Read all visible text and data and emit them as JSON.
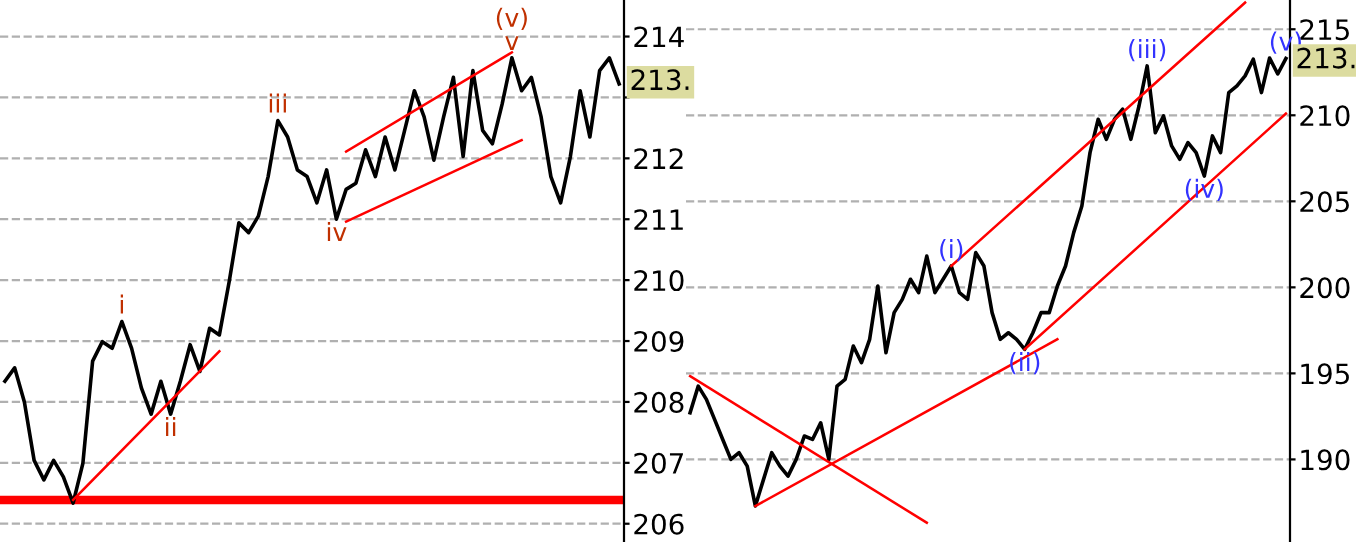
{
  "chart_data": [
    {
      "type": "line",
      "categories": [
        null,
        null,
        null,
        null,
        null,
        null,
        null,
        null,
        null,
        null,
        null,
        null,
        null,
        null,
        null,
        null,
        null,
        null,
        null,
        null,
        null,
        null,
        null,
        null,
        null,
        null,
        null,
        null,
        null,
        null,
        null,
        null,
        null,
        null,
        null,
        null,
        null,
        null,
        null,
        null,
        null,
        null,
        null,
        null,
        null,
        null,
        null,
        null,
        null,
        null,
        null,
        null,
        null,
        null,
        null,
        null,
        null,
        null,
        null,
        null,
        null,
        null,
        null,
        null
      ],
      "ylim": [
        205.7,
        214.6
      ],
      "yticks": [
        206,
        207,
        208,
        209,
        210,
        211,
        212,
        {
          "value": 213,
          "label": null
        },
        214
      ],
      "tick_labels": "y",
      "grid": "y",
      "marker": "none",
      "line_style": "solid",
      "series": [
        {
          "color": "#000000",
          "values": [
            208.34,
            208.56,
            208.0,
            207.04,
            206.72,
            207.04,
            206.77,
            206.34,
            206.99,
            208.67,
            208.99,
            208.88,
            209.32,
            208.88,
            208.23,
            207.8,
            208.34,
            207.8,
            208.34,
            208.94,
            208.5,
            209.21,
            209.1,
            209.97,
            210.94,
            210.78,
            211.05,
            211.7,
            212.62,
            212.35,
            211.81,
            211.7,
            211.27,
            211.81,
            211.0,
            211.49,
            211.59,
            212.14,
            211.7,
            212.35,
            211.81,
            212.46,
            213.11,
            212.68,
            211.97,
            212.68,
            213.33,
            212.03,
            213.44,
            212.46,
            212.24,
            212.89,
            213.65,
            213.11,
            213.33,
            212.68,
            211.7,
            211.27,
            212.03,
            213.11,
            212.35,
            213.44,
            213.65,
            213.22
          ],
          "value_labels": [
            null,
            null,
            null,
            null,
            null,
            null,
            null,
            null,
            null,
            null,
            null,
            null,
            "i",
            null,
            null,
            null,
            null,
            "ii",
            null,
            null,
            null,
            null,
            null,
            null,
            null,
            null,
            null,
            null,
            "iii",
            null,
            null,
            null,
            null,
            null,
            "iv",
            null,
            null,
            null,
            null,
            null,
            null,
            null,
            null,
            null,
            null,
            null,
            null,
            null,
            null,
            null,
            null,
            null,
            "(v)\nv",
            null,
            null,
            null,
            null,
            null,
            null,
            null,
            null,
            null,
            null,
            null
          ]
        },
        {
          "color": "#ff0000",
          "values": [
            null,
            null,
            null,
            null,
            null,
            null,
            null,
            206.39,
            null,
            null,
            null,
            null,
            null,
            null,
            null,
            null,
            null,
            null,
            null,
            null,
            null,
            null,
            208.83,
            null,
            null,
            null,
            null,
            null,
            null,
            null,
            null,
            null,
            null,
            null,
            null,
            null,
            null,
            null,
            null,
            null,
            null,
            null,
            null,
            null,
            null,
            null,
            null,
            null,
            null,
            null,
            null,
            null,
            null,
            null,
            null,
            null,
            null,
            null,
            null,
            null,
            null,
            null,
            null,
            null
          ]
        },
        {
          "color": "#ff0000",
          "values": [
            null,
            null,
            null,
            null,
            null,
            null,
            null,
            null,
            null,
            null,
            null,
            null,
            null,
            null,
            null,
            null,
            null,
            null,
            null,
            null,
            null,
            null,
            null,
            null,
            null,
            null,
            null,
            null,
            null,
            null,
            null,
            null,
            null,
            null,
            null,
            212.11,
            null,
            null,
            null,
            null,
            null,
            null,
            null,
            null,
            null,
            null,
            null,
            null,
            null,
            null,
            null,
            null,
            213.74,
            null,
            null,
            null,
            null,
            null,
            null,
            null,
            null,
            null,
            null,
            null
          ]
        },
        {
          "color": "#ff0000",
          "values": [
            null,
            null,
            null,
            null,
            null,
            null,
            null,
            null,
            null,
            null,
            null,
            null,
            null,
            null,
            null,
            null,
            null,
            null,
            null,
            null,
            null,
            null,
            null,
            null,
            null,
            null,
            null,
            null,
            null,
            null,
            null,
            null,
            null,
            null,
            null,
            210.96,
            null,
            null,
            null,
            null,
            null,
            null,
            null,
            null,
            null,
            null,
            null,
            null,
            null,
            null,
            null,
            null,
            null,
            212.3,
            null,
            null,
            null,
            null,
            null,
            null,
            null,
            null,
            null,
            null
          ]
        }
      ],
      "ref_lines": [
        {
          "axis": "y",
          "value": 206.39,
          "color": "#ff0000"
        }
      ],
      "annotations": [
        {
          "text": "213.",
          "y": 213.25
        }
      ]
    },
    {
      "type": "line",
      "categories": [
        null,
        null,
        null,
        null,
        null,
        null,
        null,
        null,
        null,
        null,
        null,
        null,
        null,
        null,
        null,
        null,
        null,
        null,
        null,
        null,
        null,
        null,
        null,
        null,
        null,
        null,
        null,
        null,
        null,
        null,
        null,
        null,
        null,
        null,
        null,
        null,
        null,
        null,
        null,
        null,
        null,
        null,
        null,
        null,
        null,
        null,
        null,
        null,
        null,
        null,
        null,
        null,
        null,
        null,
        null,
        null,
        null,
        null,
        null,
        null,
        null,
        null,
        null,
        null,
        null,
        null,
        null,
        null,
        null,
        null,
        null,
        null,
        null,
        null
      ],
      "ylim": [
        185.2,
        216.7
      ],
      "yticks": [
        190,
        195,
        200,
        205,
        210,
        215
      ],
      "tick_labels": "y",
      "grid": "y",
      "marker": "none",
      "line_style": "solid",
      "series": [
        {
          "color": "#000000",
          "values": [
            192.71,
            194.26,
            193.49,
            192.33,
            191.16,
            190.0,
            190.39,
            189.61,
            187.29,
            188.84,
            190.39,
            189.61,
            189.03,
            190.0,
            191.36,
            191.16,
            192.13,
            190.0,
            194.26,
            194.65,
            196.59,
            195.62,
            196.98,
            200.08,
            196.2,
            198.53,
            199.3,
            200.47,
            199.69,
            201.82,
            199.69,
            200.47,
            201.24,
            199.69,
            199.3,
            202.02,
            201.24,
            198.53,
            196.98,
            197.36,
            196.98,
            196.4,
            197.36,
            198.53,
            198.53,
            200.08,
            201.24,
            203.18,
            204.73,
            207.83,
            209.77,
            208.6,
            209.77,
            210.35,
            208.6,
            210.54,
            212.87,
            208.99,
            209.96,
            208.22,
            207.44,
            208.41,
            207.83,
            206.47,
            208.8,
            207.83,
            211.32,
            211.71,
            212.29,
            213.26,
            211.32,
            213.33,
            212.4,
            213.3
          ],
          "value_labels": [
            null,
            null,
            null,
            null,
            null,
            null,
            null,
            null,
            null,
            null,
            null,
            null,
            null,
            null,
            null,
            null,
            null,
            null,
            null,
            null,
            null,
            null,
            null,
            null,
            null,
            null,
            null,
            null,
            null,
            null,
            null,
            null,
            "(i)",
            null,
            null,
            null,
            null,
            null,
            null,
            null,
            null,
            "(ii)",
            null,
            null,
            null,
            null,
            null,
            null,
            null,
            null,
            null,
            null,
            null,
            null,
            null,
            null,
            "(iii)",
            null,
            null,
            null,
            null,
            null,
            null,
            "(iv)",
            null,
            null,
            null,
            null,
            null,
            null,
            null,
            null,
            null,
            "(v)"
          ]
        },
        {
          "color": "#ff0000",
          "values": [
            194.84,
            null,
            null,
            null,
            null,
            null,
            null,
            null,
            null,
            null,
            null,
            null,
            null,
            null,
            null,
            null,
            null,
            null,
            null,
            null,
            null,
            null,
            null,
            null,
            null,
            null,
            null,
            null,
            null,
            186.32,
            null,
            null,
            null,
            null,
            null,
            null,
            null,
            null,
            null,
            null,
            null,
            null,
            null,
            null,
            null,
            null,
            null,
            null,
            null,
            null,
            null,
            null,
            null,
            null,
            null,
            null,
            null,
            null,
            null,
            null,
            null,
            null,
            null,
            null,
            null,
            null,
            null,
            null,
            null,
            null,
            null,
            null,
            null,
            null
          ]
        },
        {
          "color": "#ff0000",
          "values": [
            null,
            null,
            null,
            null,
            null,
            null,
            null,
            null,
            187.29,
            null,
            null,
            null,
            null,
            null,
            null,
            null,
            null,
            null,
            null,
            null,
            null,
            null,
            null,
            null,
            null,
            null,
            null,
            null,
            null,
            null,
            null,
            null,
            null,
            null,
            null,
            null,
            null,
            null,
            null,
            null,
            null,
            null,
            null,
            null,
            null,
            196.98,
            null,
            null,
            null,
            null,
            null,
            null,
            null,
            null,
            null,
            null,
            null,
            null,
            null,
            null,
            null,
            null,
            null,
            null,
            null,
            null,
            null,
            null,
            null,
            null,
            null,
            null,
            null,
            null
          ]
        },
        {
          "color": "#ff0000",
          "values": [
            null,
            null,
            null,
            null,
            null,
            null,
            null,
            null,
            null,
            null,
            null,
            null,
            null,
            null,
            null,
            null,
            null,
            null,
            null,
            null,
            null,
            null,
            null,
            null,
            null,
            null,
            null,
            null,
            null,
            null,
            null,
            null,
            201.24,
            null,
            null,
            null,
            null,
            null,
            null,
            null,
            null,
            null,
            null,
            null,
            null,
            null,
            null,
            null,
            null,
            null,
            null,
            null,
            null,
            null,
            null,
            null,
            null,
            null,
            null,
            null,
            null,
            null,
            null,
            null,
            null,
            null,
            null,
            null,
            216.55,
            null,
            null,
            null,
            null,
            null
          ]
        },
        {
          "color": "#ff0000",
          "values": [
            null,
            null,
            null,
            null,
            null,
            null,
            null,
            null,
            null,
            null,
            null,
            null,
            null,
            null,
            null,
            null,
            null,
            null,
            null,
            null,
            null,
            null,
            null,
            null,
            null,
            null,
            null,
            null,
            null,
            null,
            null,
            null,
            null,
            null,
            null,
            null,
            null,
            null,
            null,
            null,
            null,
            196.4,
            null,
            null,
            null,
            null,
            null,
            null,
            null,
            null,
            null,
            null,
            null,
            null,
            null,
            null,
            null,
            null,
            null,
            null,
            null,
            null,
            null,
            null,
            null,
            null,
            null,
            null,
            null,
            null,
            null,
            null,
            null,
            210.1
          ]
        }
      ],
      "annotations": [
        {
          "text": "213.",
          "y": 213.18
        }
      ]
    }
  ]
}
